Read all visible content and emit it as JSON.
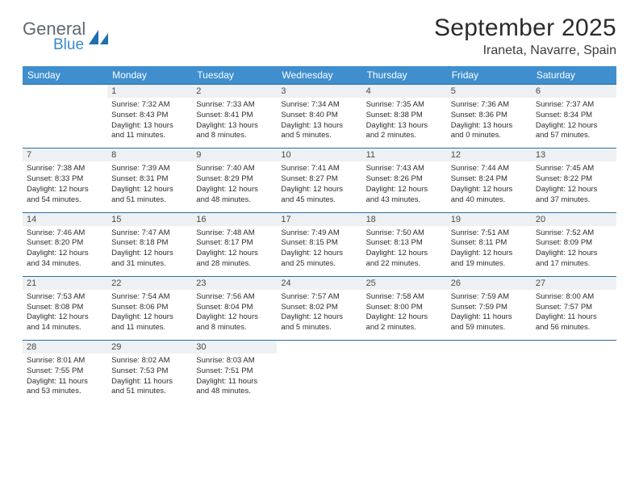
{
  "logo": {
    "word1": "General",
    "word2": "Blue",
    "sail_color": "#1e6fb3"
  },
  "title": "September 2025",
  "location": "Iraneta, Navarre, Spain",
  "colors": {
    "header_bg": "#3f8fcf",
    "header_text": "#ffffff",
    "daynum_bg": "#eef1f3",
    "daynum_border": "#2f6ea3",
    "text": "#2d2d2d"
  },
  "daysOfWeek": [
    "Sunday",
    "Monday",
    "Tuesday",
    "Wednesday",
    "Thursday",
    "Friday",
    "Saturday"
  ],
  "weeks": [
    [
      {
        "n": "",
        "empty": true
      },
      {
        "n": "1",
        "sr": "Sunrise: 7:32 AM",
        "ss": "Sunset: 8:43 PM",
        "dl1": "Daylight: 13 hours",
        "dl2": "and 11 minutes."
      },
      {
        "n": "2",
        "sr": "Sunrise: 7:33 AM",
        "ss": "Sunset: 8:41 PM",
        "dl1": "Daylight: 13 hours",
        "dl2": "and 8 minutes."
      },
      {
        "n": "3",
        "sr": "Sunrise: 7:34 AM",
        "ss": "Sunset: 8:40 PM",
        "dl1": "Daylight: 13 hours",
        "dl2": "and 5 minutes."
      },
      {
        "n": "4",
        "sr": "Sunrise: 7:35 AM",
        "ss": "Sunset: 8:38 PM",
        "dl1": "Daylight: 13 hours",
        "dl2": "and 2 minutes."
      },
      {
        "n": "5",
        "sr": "Sunrise: 7:36 AM",
        "ss": "Sunset: 8:36 PM",
        "dl1": "Daylight: 13 hours",
        "dl2": "and 0 minutes."
      },
      {
        "n": "6",
        "sr": "Sunrise: 7:37 AM",
        "ss": "Sunset: 8:34 PM",
        "dl1": "Daylight: 12 hours",
        "dl2": "and 57 minutes."
      }
    ],
    [
      {
        "n": "7",
        "sr": "Sunrise: 7:38 AM",
        "ss": "Sunset: 8:33 PM",
        "dl1": "Daylight: 12 hours",
        "dl2": "and 54 minutes."
      },
      {
        "n": "8",
        "sr": "Sunrise: 7:39 AM",
        "ss": "Sunset: 8:31 PM",
        "dl1": "Daylight: 12 hours",
        "dl2": "and 51 minutes."
      },
      {
        "n": "9",
        "sr": "Sunrise: 7:40 AM",
        "ss": "Sunset: 8:29 PM",
        "dl1": "Daylight: 12 hours",
        "dl2": "and 48 minutes."
      },
      {
        "n": "10",
        "sr": "Sunrise: 7:41 AM",
        "ss": "Sunset: 8:27 PM",
        "dl1": "Daylight: 12 hours",
        "dl2": "and 45 minutes."
      },
      {
        "n": "11",
        "sr": "Sunrise: 7:43 AM",
        "ss": "Sunset: 8:26 PM",
        "dl1": "Daylight: 12 hours",
        "dl2": "and 43 minutes."
      },
      {
        "n": "12",
        "sr": "Sunrise: 7:44 AM",
        "ss": "Sunset: 8:24 PM",
        "dl1": "Daylight: 12 hours",
        "dl2": "and 40 minutes."
      },
      {
        "n": "13",
        "sr": "Sunrise: 7:45 AM",
        "ss": "Sunset: 8:22 PM",
        "dl1": "Daylight: 12 hours",
        "dl2": "and 37 minutes."
      }
    ],
    [
      {
        "n": "14",
        "sr": "Sunrise: 7:46 AM",
        "ss": "Sunset: 8:20 PM",
        "dl1": "Daylight: 12 hours",
        "dl2": "and 34 minutes."
      },
      {
        "n": "15",
        "sr": "Sunrise: 7:47 AM",
        "ss": "Sunset: 8:18 PM",
        "dl1": "Daylight: 12 hours",
        "dl2": "and 31 minutes."
      },
      {
        "n": "16",
        "sr": "Sunrise: 7:48 AM",
        "ss": "Sunset: 8:17 PM",
        "dl1": "Daylight: 12 hours",
        "dl2": "and 28 minutes."
      },
      {
        "n": "17",
        "sr": "Sunrise: 7:49 AM",
        "ss": "Sunset: 8:15 PM",
        "dl1": "Daylight: 12 hours",
        "dl2": "and 25 minutes."
      },
      {
        "n": "18",
        "sr": "Sunrise: 7:50 AM",
        "ss": "Sunset: 8:13 PM",
        "dl1": "Daylight: 12 hours",
        "dl2": "and 22 minutes."
      },
      {
        "n": "19",
        "sr": "Sunrise: 7:51 AM",
        "ss": "Sunset: 8:11 PM",
        "dl1": "Daylight: 12 hours",
        "dl2": "and 19 minutes."
      },
      {
        "n": "20",
        "sr": "Sunrise: 7:52 AM",
        "ss": "Sunset: 8:09 PM",
        "dl1": "Daylight: 12 hours",
        "dl2": "and 17 minutes."
      }
    ],
    [
      {
        "n": "21",
        "sr": "Sunrise: 7:53 AM",
        "ss": "Sunset: 8:08 PM",
        "dl1": "Daylight: 12 hours",
        "dl2": "and 14 minutes."
      },
      {
        "n": "22",
        "sr": "Sunrise: 7:54 AM",
        "ss": "Sunset: 8:06 PM",
        "dl1": "Daylight: 12 hours",
        "dl2": "and 11 minutes."
      },
      {
        "n": "23",
        "sr": "Sunrise: 7:56 AM",
        "ss": "Sunset: 8:04 PM",
        "dl1": "Daylight: 12 hours",
        "dl2": "and 8 minutes."
      },
      {
        "n": "24",
        "sr": "Sunrise: 7:57 AM",
        "ss": "Sunset: 8:02 PM",
        "dl1": "Daylight: 12 hours",
        "dl2": "and 5 minutes."
      },
      {
        "n": "25",
        "sr": "Sunrise: 7:58 AM",
        "ss": "Sunset: 8:00 PM",
        "dl1": "Daylight: 12 hours",
        "dl2": "and 2 minutes."
      },
      {
        "n": "26",
        "sr": "Sunrise: 7:59 AM",
        "ss": "Sunset: 7:59 PM",
        "dl1": "Daylight: 11 hours",
        "dl2": "and 59 minutes."
      },
      {
        "n": "27",
        "sr": "Sunrise: 8:00 AM",
        "ss": "Sunset: 7:57 PM",
        "dl1": "Daylight: 11 hours",
        "dl2": "and 56 minutes."
      }
    ],
    [
      {
        "n": "28",
        "sr": "Sunrise: 8:01 AM",
        "ss": "Sunset: 7:55 PM",
        "dl1": "Daylight: 11 hours",
        "dl2": "and 53 minutes."
      },
      {
        "n": "29",
        "sr": "Sunrise: 8:02 AM",
        "ss": "Sunset: 7:53 PM",
        "dl1": "Daylight: 11 hours",
        "dl2": "and 51 minutes."
      },
      {
        "n": "30",
        "sr": "Sunrise: 8:03 AM",
        "ss": "Sunset: 7:51 PM",
        "dl1": "Daylight: 11 hours",
        "dl2": "and 48 minutes."
      },
      {
        "n": "",
        "empty": true
      },
      {
        "n": "",
        "empty": true
      },
      {
        "n": "",
        "empty": true
      },
      {
        "n": "",
        "empty": true
      }
    ]
  ]
}
